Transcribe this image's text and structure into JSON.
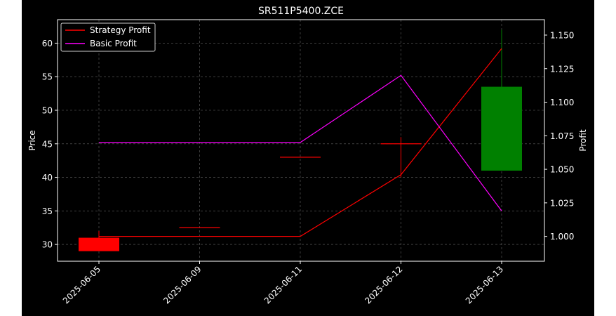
{
  "chart_data": {
    "type": "candlestick",
    "title": "SR511P5400.ZCE",
    "ylabel": "Price",
    "y2label": "Profit",
    "categories": [
      "2025-06-05",
      "2025-06-09",
      "2025-06-11",
      "2025-06-12",
      "2025-06-13"
    ],
    "ylim": [
      27.5,
      63.5
    ],
    "y2lim": [
      0.9815,
      1.1615
    ],
    "yticks": [
      30,
      35,
      40,
      45,
      50,
      55,
      60
    ],
    "y2ticks": [
      1.0,
      1.025,
      1.05,
      1.075,
      1.1,
      1.125,
      1.15
    ],
    "candles": [
      {
        "date": "2025-06-05",
        "open": 31.0,
        "high": 32.0,
        "low": 29.0,
        "close": 29.0
      },
      {
        "date": "2025-06-09",
        "open": 32.5,
        "high": 32.5,
        "low": 32.5,
        "close": 32.5
      },
      {
        "date": "2025-06-11",
        "open": 43.0,
        "high": 43.0,
        "low": 43.0,
        "close": 43.0
      },
      {
        "date": "2025-06-12",
        "open": 45.0,
        "high": 46.0,
        "low": 40.0,
        "close": 45.0
      },
      {
        "date": "2025-06-13",
        "open": 41.0,
        "high": 62.0,
        "low": 41.0,
        "close": 53.5
      }
    ],
    "series": [
      {
        "name": "Strategy Profit",
        "axis": "right",
        "color": "#ff0000",
        "values": [
          1.0,
          1.0,
          1.0,
          1.046,
          1.14
        ]
      },
      {
        "name": "Basic Profit",
        "axis": "right",
        "color": "#ff00ff",
        "values": [
          1.07,
          1.07,
          1.07,
          1.12,
          1.019
        ]
      }
    ],
    "colors": {
      "up": "#008000",
      "down": "#ff0000",
      "flat": "#ff0000",
      "background": "#000000",
      "foreground": "#ffffff",
      "grid": "#808080"
    },
    "grid": true,
    "legend": "upper-left"
  }
}
